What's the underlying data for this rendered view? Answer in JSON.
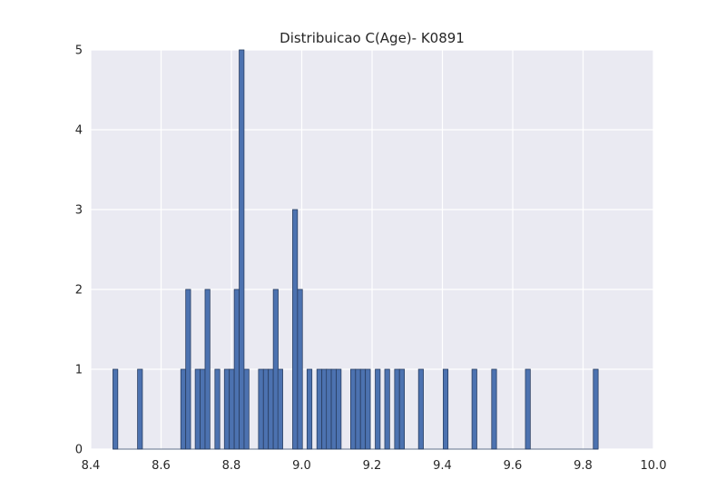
{
  "chart_data": {
    "type": "bar",
    "title": "Distribuicao C(Age)- K0891",
    "xlabel": "",
    "ylabel": "",
    "xlim": [
      8.4,
      10.0
    ],
    "ylim": [
      0,
      5
    ],
    "xticks": [
      "8.4",
      "8.6",
      "8.8",
      "9.0",
      "9.2",
      "9.4",
      "9.6",
      "9.8",
      "10.0"
    ],
    "yticks": [
      "0",
      "1",
      "2",
      "3",
      "4",
      "5"
    ],
    "grid": true,
    "bin_width": 0.0138,
    "bins": [
      {
        "x": 8.47,
        "count": 1
      },
      {
        "x": 8.54,
        "count": 1
      },
      {
        "x": 8.663,
        "count": 1
      },
      {
        "x": 8.677,
        "count": 2
      },
      {
        "x": 8.704,
        "count": 1
      },
      {
        "x": 8.718,
        "count": 1
      },
      {
        "x": 8.732,
        "count": 2
      },
      {
        "x": 8.76,
        "count": 1
      },
      {
        "x": 8.787,
        "count": 1
      },
      {
        "x": 8.801,
        "count": 1
      },
      {
        "x": 8.815,
        "count": 2
      },
      {
        "x": 8.829,
        "count": 5
      },
      {
        "x": 8.843,
        "count": 1
      },
      {
        "x": 8.884,
        "count": 1
      },
      {
        "x": 8.898,
        "count": 1
      },
      {
        "x": 8.912,
        "count": 1
      },
      {
        "x": 8.926,
        "count": 2
      },
      {
        "x": 8.939,
        "count": 1
      },
      {
        "x": 8.981,
        "count": 3
      },
      {
        "x": 8.995,
        "count": 2
      },
      {
        "x": 9.022,
        "count": 1
      },
      {
        "x": 9.05,
        "count": 1
      },
      {
        "x": 9.064,
        "count": 1
      },
      {
        "x": 9.077,
        "count": 1
      },
      {
        "x": 9.091,
        "count": 1
      },
      {
        "x": 9.105,
        "count": 1
      },
      {
        "x": 9.146,
        "count": 1
      },
      {
        "x": 9.16,
        "count": 1
      },
      {
        "x": 9.174,
        "count": 1
      },
      {
        "x": 9.188,
        "count": 1
      },
      {
        "x": 9.216,
        "count": 1
      },
      {
        "x": 9.243,
        "count": 1
      },
      {
        "x": 9.271,
        "count": 1
      },
      {
        "x": 9.285,
        "count": 1
      },
      {
        "x": 9.339,
        "count": 1
      },
      {
        "x": 9.409,
        "count": 1
      },
      {
        "x": 9.491,
        "count": 1
      },
      {
        "x": 9.547,
        "count": 1
      },
      {
        "x": 9.643,
        "count": 1
      },
      {
        "x": 9.836,
        "count": 1
      }
    ],
    "colors": {
      "bar_fill": "#4c72b0",
      "bar_edge": "#2a3f63",
      "plot_bg": "#eaeaf2",
      "grid": "#ffffff"
    }
  }
}
